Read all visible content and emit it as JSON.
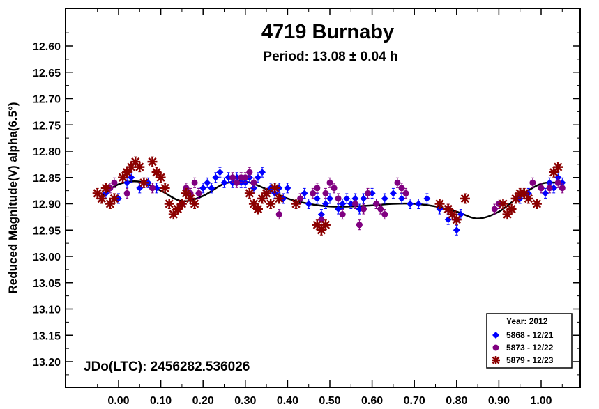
{
  "chart_data": {
    "type": "scatter",
    "title": "4719 Burnaby",
    "subtitle": "Period: 13.08 ± 0.04 h",
    "xlabel": "",
    "ylabel": "Reduced Magnitude(V) alpha(6.5°)",
    "annotation": "JDo(LTC): 2456282.536026",
    "xlim": [
      -0.05,
      1.09
    ],
    "ylim": [
      12.55,
      13.26
    ],
    "y_inverted": true,
    "grid": false,
    "x_ticks": [
      0.0,
      0.1,
      0.2,
      0.3,
      0.4,
      0.5,
      0.6,
      0.7,
      0.8,
      0.9,
      1.0
    ],
    "x_tick_labels": [
      "0.00",
      "0.10",
      "0.20",
      "0.30",
      "0.40",
      "0.50",
      "0.60",
      "0.70",
      "0.80",
      "0.90",
      "1.00"
    ],
    "y_ticks": [
      12.6,
      12.65,
      12.7,
      12.75,
      12.8,
      12.85,
      12.9,
      12.95,
      13.0,
      13.05,
      13.1,
      13.15,
      13.2
    ],
    "y_tick_labels": [
      "12.60",
      "12.65",
      "12.70",
      "12.75",
      "12.80",
      "12.85",
      "12.90",
      "12.95",
      "13.00",
      "13.05",
      "13.10",
      "13.15",
      "13.20"
    ],
    "legend": {
      "title": "Year: 2012",
      "placement": "bottom-right",
      "entries": [
        "5868 - 12/21",
        "5873 - 12/22",
        "5879 - 12/23"
      ]
    },
    "fit_curve": {
      "x": [
        -0.04,
        0.0,
        0.05,
        0.1,
        0.15,
        0.2,
        0.25,
        0.3,
        0.35,
        0.4,
        0.45,
        0.5,
        0.55,
        0.6,
        0.65,
        0.7,
        0.75,
        0.8,
        0.85,
        0.9,
        0.95,
        1.0,
        1.04
      ],
      "y": [
        12.885,
        12.863,
        12.858,
        12.875,
        12.895,
        12.885,
        12.862,
        12.858,
        12.872,
        12.89,
        12.9,
        12.905,
        12.905,
        12.903,
        12.9,
        12.9,
        12.905,
        12.915,
        12.928,
        12.915,
        12.885,
        12.862,
        12.86
      ]
    },
    "series": [
      {
        "name": "5868 - 12/21",
        "color": "#0000ff",
        "marker": "diamond",
        "x": [
          -0.03,
          0.0,
          0.02,
          0.03,
          0.05,
          0.07,
          0.09,
          0.17,
          0.19,
          0.2,
          0.21,
          0.22,
          0.23,
          0.24,
          0.25,
          0.26,
          0.27,
          0.28,
          0.29,
          0.3,
          0.31,
          0.32,
          0.33,
          0.34,
          0.35,
          0.36,
          0.37,
          0.38,
          0.39,
          0.4,
          0.44,
          0.45,
          0.47,
          0.48,
          0.49,
          0.5,
          0.52,
          0.53,
          0.54,
          0.55,
          0.56,
          0.57,
          0.58,
          0.6,
          0.61,
          0.63,
          0.65,
          0.67,
          0.69,
          0.71,
          0.73,
          0.76,
          0.78,
          0.8,
          0.81,
          0.95,
          0.97,
          1.0,
          1.01,
          1.02,
          1.03,
          1.04,
          1.05
        ],
        "y": [
          12.88,
          12.89,
          12.86,
          12.85,
          12.87,
          12.86,
          12.87,
          12.89,
          12.88,
          12.87,
          12.86,
          12.87,
          12.85,
          12.84,
          12.86,
          12.85,
          12.86,
          12.85,
          12.86,
          12.86,
          12.85,
          12.87,
          12.85,
          12.84,
          12.88,
          12.87,
          12.88,
          12.87,
          12.89,
          12.87,
          12.88,
          12.9,
          12.89,
          12.92,
          12.9,
          12.89,
          12.91,
          12.9,
          12.89,
          12.9,
          12.89,
          12.91,
          12.89,
          12.88,
          12.9,
          12.89,
          12.88,
          12.89,
          12.9,
          12.9,
          12.89,
          12.91,
          12.93,
          12.95,
          12.92,
          12.89,
          12.88,
          12.87,
          12.88,
          12.86,
          12.87,
          12.85,
          12.86
        ]
      },
      {
        "name": "5873 - 12/22",
        "color": "#800080",
        "marker": "circle",
        "x": [
          -0.02,
          -0.01,
          0.02,
          0.06,
          0.08,
          0.15,
          0.16,
          0.17,
          0.18,
          0.19,
          0.27,
          0.28,
          0.29,
          0.3,
          0.31,
          0.32,
          0.38,
          0.43,
          0.46,
          0.47,
          0.48,
          0.49,
          0.5,
          0.51,
          0.52,
          0.53,
          0.56,
          0.57,
          0.58,
          0.59,
          0.61,
          0.62,
          0.63,
          0.66,
          0.67,
          0.68,
          0.78,
          0.8,
          0.89,
          0.9,
          0.98,
          1.0,
          1.02,
          1.04,
          1.05
        ],
        "y": [
          12.87,
          12.86,
          12.88,
          12.86,
          12.87,
          12.9,
          12.87,
          12.88,
          12.86,
          12.88,
          12.85,
          12.86,
          12.85,
          12.85,
          12.84,
          12.86,
          12.92,
          12.89,
          12.88,
          12.87,
          12.93,
          12.88,
          12.86,
          12.87,
          12.89,
          12.92,
          12.9,
          12.94,
          12.91,
          12.88,
          12.9,
          12.91,
          12.92,
          12.86,
          12.87,
          12.88,
          12.91,
          12.93,
          12.91,
          12.9,
          12.86,
          12.87,
          12.87,
          12.86,
          12.87
        ]
      },
      {
        "name": "5879 - 12/23",
        "color": "#8b0000",
        "marker": "asterisk",
        "x": [
          -0.05,
          -0.04,
          -0.03,
          -0.02,
          -0.01,
          0.01,
          0.02,
          0.03,
          0.04,
          0.05,
          0.06,
          0.08,
          0.09,
          0.1,
          0.11,
          0.12,
          0.13,
          0.14,
          0.15,
          0.16,
          0.17,
          0.18,
          0.31,
          0.32,
          0.33,
          0.34,
          0.35,
          0.36,
          0.37,
          0.38,
          0.42,
          0.47,
          0.48,
          0.49,
          0.76,
          0.78,
          0.79,
          0.8,
          0.82,
          0.91,
          0.92,
          0.93,
          0.94,
          0.95,
          0.96,
          0.97,
          0.99,
          1.03,
          1.04
        ],
        "y": [
          12.88,
          12.89,
          12.87,
          12.9,
          12.89,
          12.85,
          12.84,
          12.83,
          12.82,
          12.83,
          12.86,
          12.82,
          12.84,
          12.85,
          12.87,
          12.9,
          12.92,
          12.91,
          12.9,
          12.88,
          12.89,
          12.9,
          12.88,
          12.9,
          12.91,
          12.89,
          12.88,
          12.9,
          12.87,
          12.89,
          12.9,
          12.94,
          12.95,
          12.94,
          12.9,
          12.91,
          12.92,
          12.93,
          12.89,
          12.9,
          12.92,
          12.91,
          12.89,
          12.88,
          12.88,
          12.89,
          12.9,
          12.84,
          12.83
        ]
      }
    ]
  }
}
